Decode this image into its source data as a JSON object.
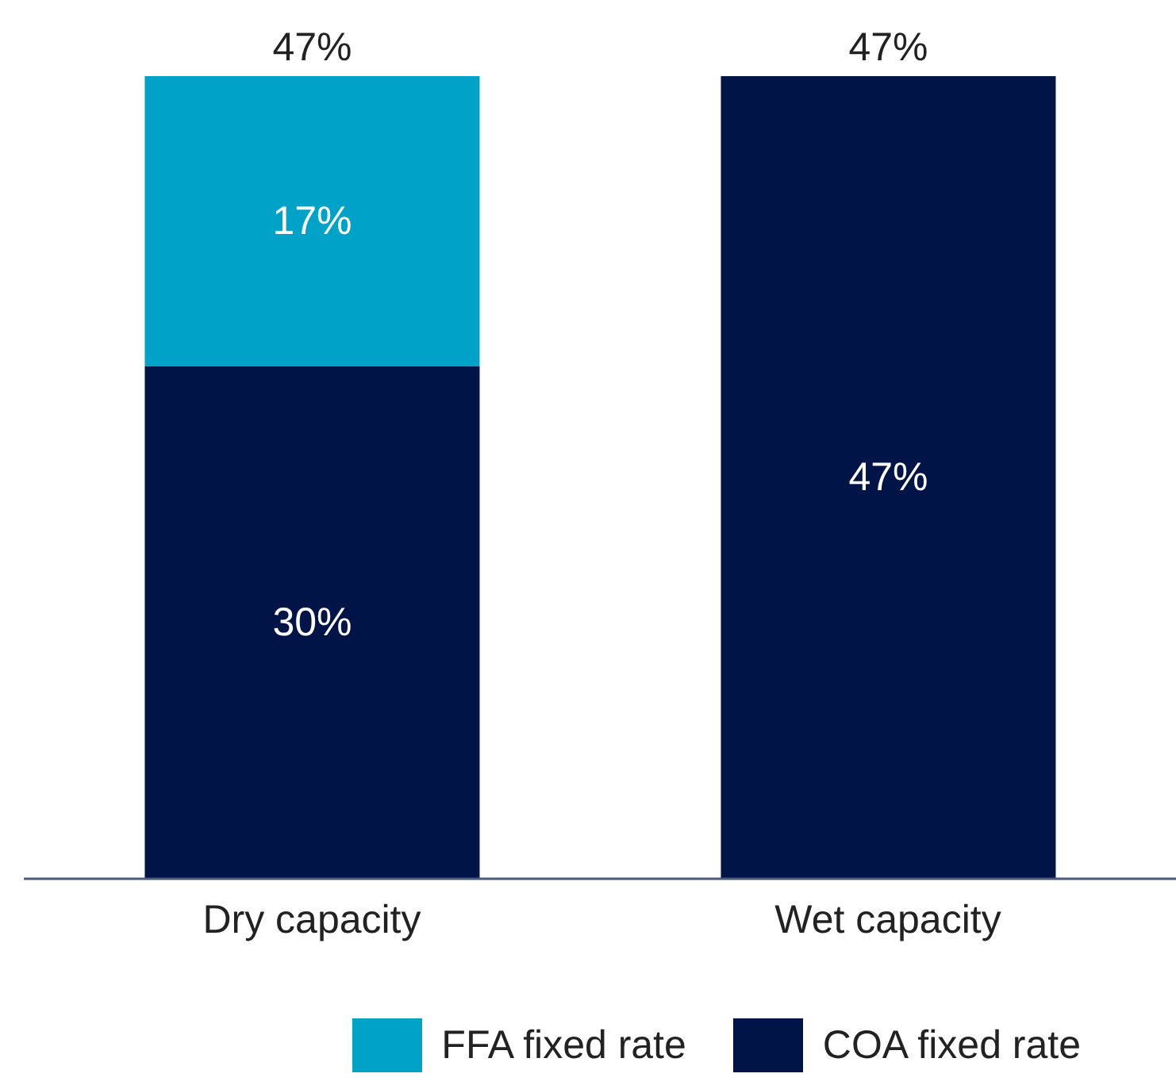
{
  "chart_data": {
    "type": "bar",
    "stacked": true,
    "categories": [
      "Dry capacity",
      "Wet capacity"
    ],
    "series": [
      {
        "name": "COA fixed rate",
        "color": "#001447",
        "values": [
          30,
          47
        ],
        "value_labels": [
          "30%",
          "47%"
        ]
      },
      {
        "name": "FFA fixed rate",
        "color": "#00a3c7",
        "values": [
          17,
          null
        ],
        "value_labels": [
          "17%",
          null
        ]
      }
    ],
    "totals": [
      "47%",
      "47%"
    ],
    "legend": "bottom"
  }
}
